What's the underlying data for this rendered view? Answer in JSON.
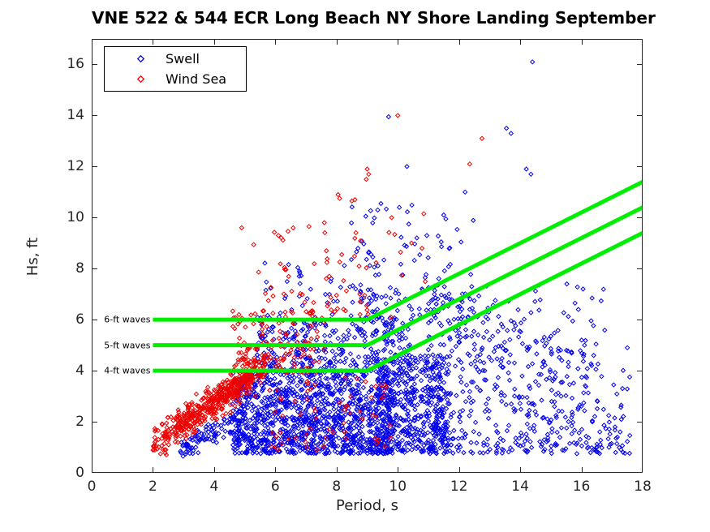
{
  "title": "VNE 522 & 544 ECR Long Beach NY Shore Landing September",
  "axes": {
    "xlabel": "Period, s",
    "ylabel": "Hs, ft",
    "xlim": [
      0,
      18
    ],
    "ylim": [
      0,
      17
    ],
    "x_ticks": [
      0,
      2,
      4,
      6,
      8,
      10,
      12,
      14,
      16,
      18
    ],
    "y_ticks": [
      0,
      2,
      4,
      6,
      8,
      10,
      12,
      14,
      16
    ],
    "axis_color": "#262626",
    "tick_length": 6,
    "grid": false
  },
  "legend": {
    "position": "top-left-inside",
    "items": [
      {
        "label": "Swell",
        "color": "#0000ee",
        "marker": "diamond"
      },
      {
        "label": "Wind Sea",
        "color": "#ee0000",
        "marker": "diamond"
      }
    ]
  },
  "chart_data": {
    "type": "scatter",
    "title": "VNE 522 & 544 ECR Long Beach NY Shore Landing September",
    "xlabel": "Period, s",
    "ylabel": "Hs, ft",
    "xlim": [
      0,
      18
    ],
    "ylim": [
      0,
      17
    ],
    "marker": {
      "shape": "diamond",
      "half_size": 2.5,
      "hollow": true
    },
    "series_colors": {
      "swell": "#0000ee",
      "wind_sea": "#ee0000"
    },
    "reference_lines": {
      "color": "#00ef00",
      "width": 5,
      "description": "flat from x_start to bend_x at level, then rises with slope ft/s to x_end",
      "lines": [
        {
          "label": "6-ft waves",
          "level": 6,
          "x_start": 2,
          "bend_x": 9,
          "slope": 0.6,
          "x_end": 18
        },
        {
          "label": "5-ft waves",
          "level": 5,
          "x_start": 2,
          "bend_x": 9,
          "slope": 0.6,
          "x_end": 18
        },
        {
          "label": "4-ft waves",
          "level": 4,
          "x_start": 2,
          "bend_x": 9,
          "slope": 0.6,
          "x_end": 18
        }
      ]
    },
    "seed": 20240917,
    "clusters": [
      {
        "kind": "box",
        "series": "swell",
        "count": 1150,
        "x": [
          4.6,
          9.9
        ],
        "xpow": 1.0,
        "y": [
          0.75,
          3.9
        ],
        "ypow": 1.25
      },
      {
        "kind": "box",
        "series": "swell",
        "count": 430,
        "x": [
          9.3,
          11.7
        ],
        "xpow": 1.0,
        "y": [
          0.8,
          4.6
        ],
        "ypow": 1.2
      },
      {
        "kind": "fan",
        "series": "swell",
        "count": 520,
        "x": [
          11.0,
          17.6
        ],
        "xpow": 1.5,
        "ylo": 0.75,
        "ypow": 1.35,
        "u0": 13.6,
        "u1": -0.55
      },
      {
        "kind": "box",
        "series": "swell",
        "count": 330,
        "x": [
          5.4,
          10.4
        ],
        "xpow": 1.0,
        "y": [
          3.9,
          6.1
        ],
        "ypow": 1.35
      },
      {
        "kind": "box",
        "series": "swell",
        "count": 115,
        "x": [
          8.4,
          12.5
        ],
        "xpow": 1.1,
        "y": [
          6.0,
          10.5
        ],
        "ypow": 1.6
      },
      {
        "kind": "box",
        "series": "swell",
        "count": 60,
        "x": [
          12.0,
          16.8
        ],
        "xpow": 1.25,
        "y": [
          4.8,
          7.4
        ],
        "ypow": 1.5
      },
      {
        "kind": "band",
        "series": "swell",
        "count": 110,
        "x": [
          2.9,
          5.1
        ],
        "xpow": 0.95,
        "a": -0.9,
        "b": 0.62,
        "spread": 0.6,
        "clip": [
          0.65,
          3.5
        ]
      },
      {
        "kind": "box",
        "series": "swell",
        "count": 45,
        "x": [
          5.5,
          9.5
        ],
        "xpow": 1.0,
        "y": [
          6.1,
          8.3
        ],
        "ypow": 1.3
      },
      {
        "kind": "band",
        "series": "wind_sea",
        "count": 330,
        "x": [
          2.0,
          5.7
        ],
        "xpow": 0.95,
        "a": -0.65,
        "b": 0.85,
        "spread": 0.9,
        "clip": [
          0.7,
          5.2
        ]
      },
      {
        "kind": "band",
        "series": "wind_sea",
        "count": 210,
        "x": [
          2.8,
          5.3
        ],
        "xpow": 1.0,
        "a": -0.35,
        "b": 0.8,
        "spread": 0.5,
        "clip": [
          0.75,
          4.6
        ]
      },
      {
        "kind": "box",
        "series": "wind_sea",
        "count": 150,
        "x": [
          4.6,
          7.6
        ],
        "xpow": 1.05,
        "y": [
          3.9,
          6.4
        ],
        "ypow": 1.25
      },
      {
        "kind": "box",
        "series": "wind_sea",
        "count": 55,
        "x": [
          5.2,
          9.3
        ],
        "xpow": 1.1,
        "y": [
          6.2,
          9.6
        ],
        "ypow": 1.5
      },
      {
        "kind": "box",
        "series": "wind_sea",
        "count": 65,
        "x": [
          5.8,
          9.8
        ],
        "xpow": 1.0,
        "y": [
          0.9,
          3.8
        ],
        "ypow": 1.1
      },
      {
        "kind": "box",
        "series": "wind_sea",
        "count": 13,
        "x": [
          8.0,
          11.0
        ],
        "xpow": 1.0,
        "y": [
          6.0,
          10.2
        ],
        "ypow": 1.2
      }
    ],
    "outliers": {
      "swell": [
        [
          14.4,
          16.1
        ],
        [
          9.7,
          13.95
        ],
        [
          13.55,
          13.5
        ],
        [
          13.7,
          13.3
        ],
        [
          14.2,
          11.9
        ],
        [
          14.35,
          11.7
        ],
        [
          12.2,
          11.0
        ],
        [
          10.3,
          12.0
        ],
        [
          11.5,
          10.1
        ],
        [
          10.05,
          10.4
        ],
        [
          9.45,
          10.55
        ],
        [
          16.1,
          5.0
        ],
        [
          16.4,
          4.6
        ],
        [
          17.5,
          4.9
        ],
        [
          17.3,
          2.65
        ],
        [
          16.9,
          1.0
        ],
        [
          15.9,
          6.4
        ]
      ],
      "wind_sea": [
        [
          10.0,
          14.0
        ],
        [
          12.75,
          13.1
        ],
        [
          12.35,
          12.1
        ],
        [
          9.0,
          11.9
        ],
        [
          9.05,
          11.7
        ],
        [
          8.97,
          11.5
        ],
        [
          8.05,
          10.9
        ],
        [
          8.1,
          10.75
        ],
        [
          8.5,
          10.65
        ],
        [
          8.6,
          10.7
        ],
        [
          7.1,
          9.65
        ],
        [
          4.9,
          9.6
        ],
        [
          10.85,
          10.15
        ],
        [
          7.6,
          9.8
        ],
        [
          6.1,
          9.3
        ],
        [
          10.45,
          9.0
        ]
      ]
    }
  }
}
